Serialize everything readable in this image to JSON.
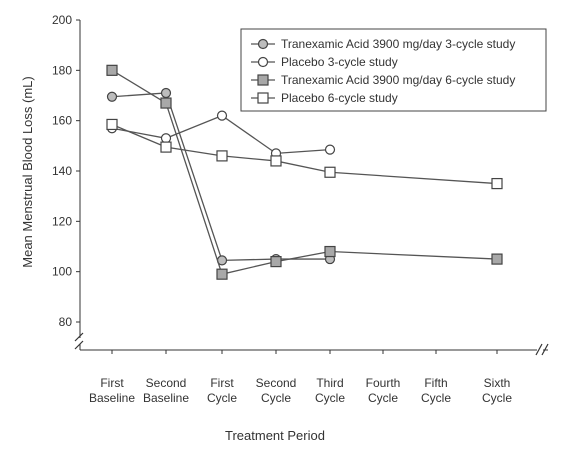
{
  "chart_data": {
    "type": "line",
    "title": "",
    "xlabel": "Treatment Period",
    "ylabel": "Mean Menstrual Blood Loss (mL)",
    "ylim": [
      80,
      200
    ],
    "yticks": [
      80,
      100,
      120,
      140,
      160,
      180,
      200
    ],
    "axis_break": true,
    "grid": false,
    "legend_position": "top-right",
    "categories": [
      [
        "First",
        "Baseline"
      ],
      [
        "Second",
        "Baseline"
      ],
      [
        "First",
        "Cycle"
      ],
      [
        "Second",
        "Cycle"
      ],
      [
        "Third",
        "Cycle"
      ],
      [
        "Fourth",
        "Cycle"
      ],
      [
        "Fifth",
        "Cycle"
      ],
      [
        "Sixth",
        "Cycle"
      ]
    ],
    "series": [
      {
        "name": "Tranexamic Acid 3900 mg/day 3-cycle study",
        "marker": "circle",
        "fill": "#bdbdbd",
        "stroke": "#444444",
        "points": [
          [
            0,
            169.5
          ],
          [
            1,
            171
          ],
          [
            2,
            104.5
          ],
          [
            3,
            105
          ],
          [
            4,
            105
          ]
        ]
      },
      {
        "name": "Placebo 3-cycle study",
        "marker": "circle",
        "fill": "#ffffff",
        "stroke": "#444444",
        "points": [
          [
            0,
            157
          ],
          [
            1,
            153
          ],
          [
            2,
            162
          ],
          [
            3,
            147
          ],
          [
            4,
            148.5
          ]
        ]
      },
      {
        "name": "Tranexamic Acid 3900 mg/day 6-cycle study",
        "marker": "square",
        "fill": "#a8a8a8",
        "stroke": "#444444",
        "points": [
          [
            0,
            180
          ],
          [
            1,
            167
          ],
          [
            2,
            99
          ],
          [
            3,
            104
          ],
          [
            4,
            108
          ],
          [
            7,
            105
          ]
        ]
      },
      {
        "name": "Placebo 6-cycle study",
        "marker": "square",
        "fill": "#ffffff",
        "stroke": "#444444",
        "points": [
          [
            0,
            158.5
          ],
          [
            1,
            149.5
          ],
          [
            2,
            146
          ],
          [
            3,
            144
          ],
          [
            4,
            139.5
          ],
          [
            7,
            135
          ]
        ]
      }
    ]
  }
}
